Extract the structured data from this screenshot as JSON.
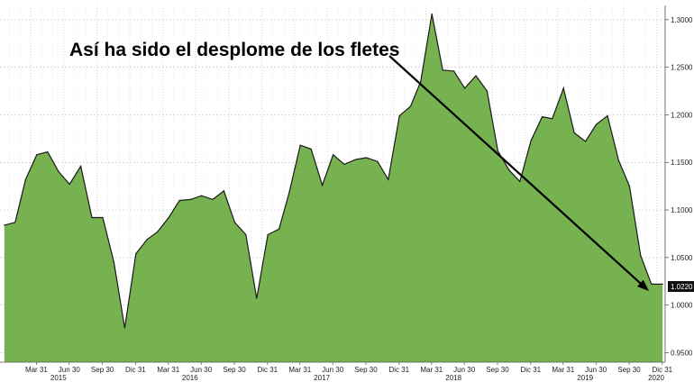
{
  "chart_data": {
    "type": "area",
    "title": "",
    "annotation": "Así ha sido el desplome de los fletes",
    "color_fill": "#77b250",
    "color_line": "#1a1a1a",
    "grid": true,
    "ylim": [
      0.94,
      1.315
    ],
    "y_ticks": [
      "0.9500",
      "1.0000",
      "1.0500",
      "1.1000",
      "1.1500",
      "1.2000",
      "1.2500",
      "1.3000"
    ],
    "last_value_label": "1.0220",
    "x_tick_labels": [
      "Mar 31",
      "Jun 30",
      "Sep 30",
      "Dic 31",
      "Mar 31",
      "Jun 30",
      "Sep 30",
      "Dic 31",
      "Mar 31",
      "Jun 30",
      "Sep 30",
      "Dic 31",
      "Mar 31",
      "Jun 30",
      "Sep 30",
      "Dic 31",
      "Mar 31",
      "Jun 30",
      "Sep 30",
      "Dic 31"
    ],
    "year_labels": [
      "2015",
      "2016",
      "2017",
      "2018",
      "2019",
      "2020"
    ],
    "x": [
      "2015-01-01",
      "2015-01-31",
      "2015-03-01",
      "2015-04-01",
      "2015-05-01",
      "2015-06-01",
      "2015-07-01",
      "2015-08-01",
      "2015-09-01",
      "2015-10-01",
      "2015-11-01",
      "2015-12-01",
      "2016-01-01",
      "2016-02-01",
      "2016-03-01",
      "2016-04-01",
      "2016-05-01",
      "2016-06-01",
      "2016-07-01",
      "2016-08-01",
      "2016-09-01",
      "2016-10-01",
      "2016-11-01",
      "2016-12-01",
      "2017-01-01",
      "2017-02-01",
      "2017-03-01",
      "2017-04-01",
      "2017-05-01",
      "2017-06-01",
      "2017-07-01",
      "2017-08-01",
      "2017-09-01",
      "2017-10-01",
      "2017-11-01",
      "2017-12-01",
      "2018-01-01",
      "2018-02-01",
      "2018-03-01",
      "2018-04-01",
      "2018-05-01",
      "2018-06-01",
      "2018-07-01",
      "2018-08-01",
      "2018-09-01",
      "2018-10-01",
      "2018-11-01",
      "2018-12-01",
      "2019-01-01",
      "2019-02-01",
      "2019-03-01",
      "2019-04-01",
      "2019-05-01",
      "2019-06-01",
      "2019-07-01",
      "2019-08-01",
      "2019-09-01",
      "2019-10-01",
      "2019-11-01",
      "2019-12-01",
      "2020-01-01"
    ],
    "values": [
      1.084,
      1.087,
      1.132,
      1.158,
      1.161,
      1.14,
      1.127,
      1.146,
      1.092,
      1.092,
      1.045,
      0.976,
      1.054,
      1.069,
      1.077,
      1.092,
      1.11,
      1.111,
      1.115,
      1.111,
      1.12,
      1.087,
      1.074,
      1.007,
      1.074,
      1.08,
      1.118,
      1.168,
      1.164,
      1.126,
      1.158,
      1.148,
      1.153,
      1.155,
      1.151,
      1.132,
      1.199,
      1.209,
      1.235,
      1.306,
      1.247,
      1.246,
      1.228,
      1.241,
      1.225,
      1.162,
      1.142,
      1.13,
      1.173,
      1.198,
      1.196,
      1.228,
      1.181,
      1.172,
      1.19,
      1.199,
      1.152,
      1.125,
      1.052,
      1.022,
      1.022
    ]
  }
}
